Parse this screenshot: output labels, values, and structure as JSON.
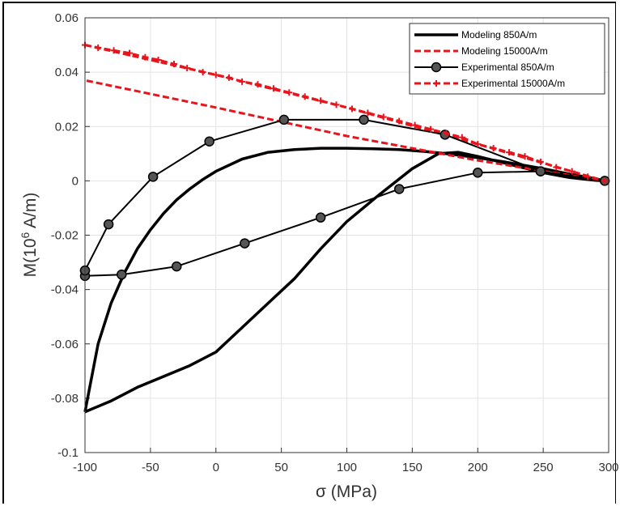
{
  "chart_data": {
    "type": "line",
    "xlabel": "σ (MPa)",
    "ylabel": "M(10^6 A/m)",
    "ylabel_base": "M(10",
    "ylabel_exp": "6",
    "ylabel_unit": " A/m)",
    "xlim": [
      -100,
      300
    ],
    "ylim": [
      -0.1,
      0.06
    ],
    "grid": true,
    "legend_position": "top-right",
    "x_ticks": [
      -100,
      -50,
      0,
      50,
      100,
      150,
      200,
      250,
      300
    ],
    "x_tick_labels": [
      "-100",
      "-50",
      "0",
      "50",
      "100",
      "150",
      "200",
      "250",
      "300"
    ],
    "y_ticks": [
      -0.1,
      -0.08,
      -0.06,
      -0.04,
      -0.02,
      0,
      0.02,
      0.04,
      0.06
    ],
    "y_tick_labels": [
      "-0.1",
      "-0.08",
      "-0.06",
      "-0.04",
      "-0.02",
      "0",
      "0.02",
      "0.04",
      "0.06"
    ],
    "series": [
      {
        "name": "Modeling 850A/m",
        "color": "#000000",
        "style": "solid",
        "marker": "none",
        "x": [
          -100,
          -90,
          -80,
          -70,
          -60,
          -50,
          -40,
          -30,
          -20,
          -10,
          0,
          20,
          40,
          60,
          80,
          100,
          120,
          140,
          160,
          180,
          200,
          220,
          250,
          270,
          290,
          297,
          290,
          270,
          250,
          225,
          200,
          185,
          170,
          150,
          125,
          100,
          80,
          60,
          40,
          20,
          0,
          -20,
          -40,
          -60,
          -80,
          -100
        ],
        "y": [
          -0.085,
          -0.06,
          -0.045,
          -0.034,
          -0.025,
          -0.018,
          -0.012,
          -0.007,
          -0.003,
          0.0005,
          0.0035,
          0.008,
          0.0105,
          0.0115,
          0.012,
          0.012,
          0.0118,
          0.0115,
          0.0108,
          0.0098,
          0.0085,
          0.007,
          0.0045,
          0.0025,
          0.0008,
          0,
          0.0002,
          0.0012,
          0.003,
          0.006,
          0.009,
          0.0105,
          0.01,
          0.0045,
          -0.005,
          -0.015,
          -0.025,
          -0.036,
          -0.045,
          -0.054,
          -0.063,
          -0.068,
          -0.072,
          -0.076,
          -0.081,
          -0.085
        ]
      },
      {
        "name": "Modeling 15000A/m",
        "color": "#e8141c",
        "style": "dashed",
        "marker": "none",
        "x": [
          -100,
          0,
          100,
          200,
          297,
          200,
          100,
          0,
          -100
        ],
        "y": [
          0.05,
          0.039,
          0.027,
          0.0135,
          0,
          0.0075,
          0.0165,
          0.027,
          0.037
        ]
      },
      {
        "name": "Experimental 850A/m",
        "color": "#000000",
        "style": "solid",
        "marker": "circle",
        "x": [
          -100,
          -82,
          -48,
          -5,
          52,
          113,
          175,
          248,
          297,
          248,
          200,
          140,
          80,
          22,
          -30,
          -72,
          -100,
          -100
        ],
        "y": [
          -0.033,
          -0.016,
          0.0015,
          0.0145,
          0.0225,
          0.0225,
          0.017,
          0.0035,
          0,
          0.0035,
          0.003,
          -0.003,
          -0.0135,
          -0.023,
          -0.0315,
          -0.0345,
          -0.035,
          -0.033
        ]
      },
      {
        "name": "Experimental 15000A/m",
        "color": "#e8141c",
        "style": "dashed",
        "marker": "plus",
        "x": [
          -100,
          -90,
          -78,
          -66,
          -54,
          -44,
          -32,
          -22,
          -10,
          0,
          10,
          20,
          32,
          44,
          56,
          68,
          80,
          92,
          104,
          116,
          128,
          140,
          152,
          164,
          176,
          188,
          200,
          212,
          224,
          236,
          248,
          260,
          272,
          284,
          297
        ],
        "y": [
          0.05,
          0.049,
          0.048,
          0.047,
          0.0455,
          0.0445,
          0.043,
          0.0415,
          0.04,
          0.039,
          0.038,
          0.0365,
          0.0355,
          0.034,
          0.0325,
          0.031,
          0.0295,
          0.028,
          0.0265,
          0.025,
          0.0235,
          0.022,
          0.0205,
          0.019,
          0.0175,
          0.016,
          0.0135,
          0.012,
          0.0105,
          0.009,
          0.007,
          0.005,
          0.0035,
          0.0015,
          0
        ]
      }
    ]
  }
}
